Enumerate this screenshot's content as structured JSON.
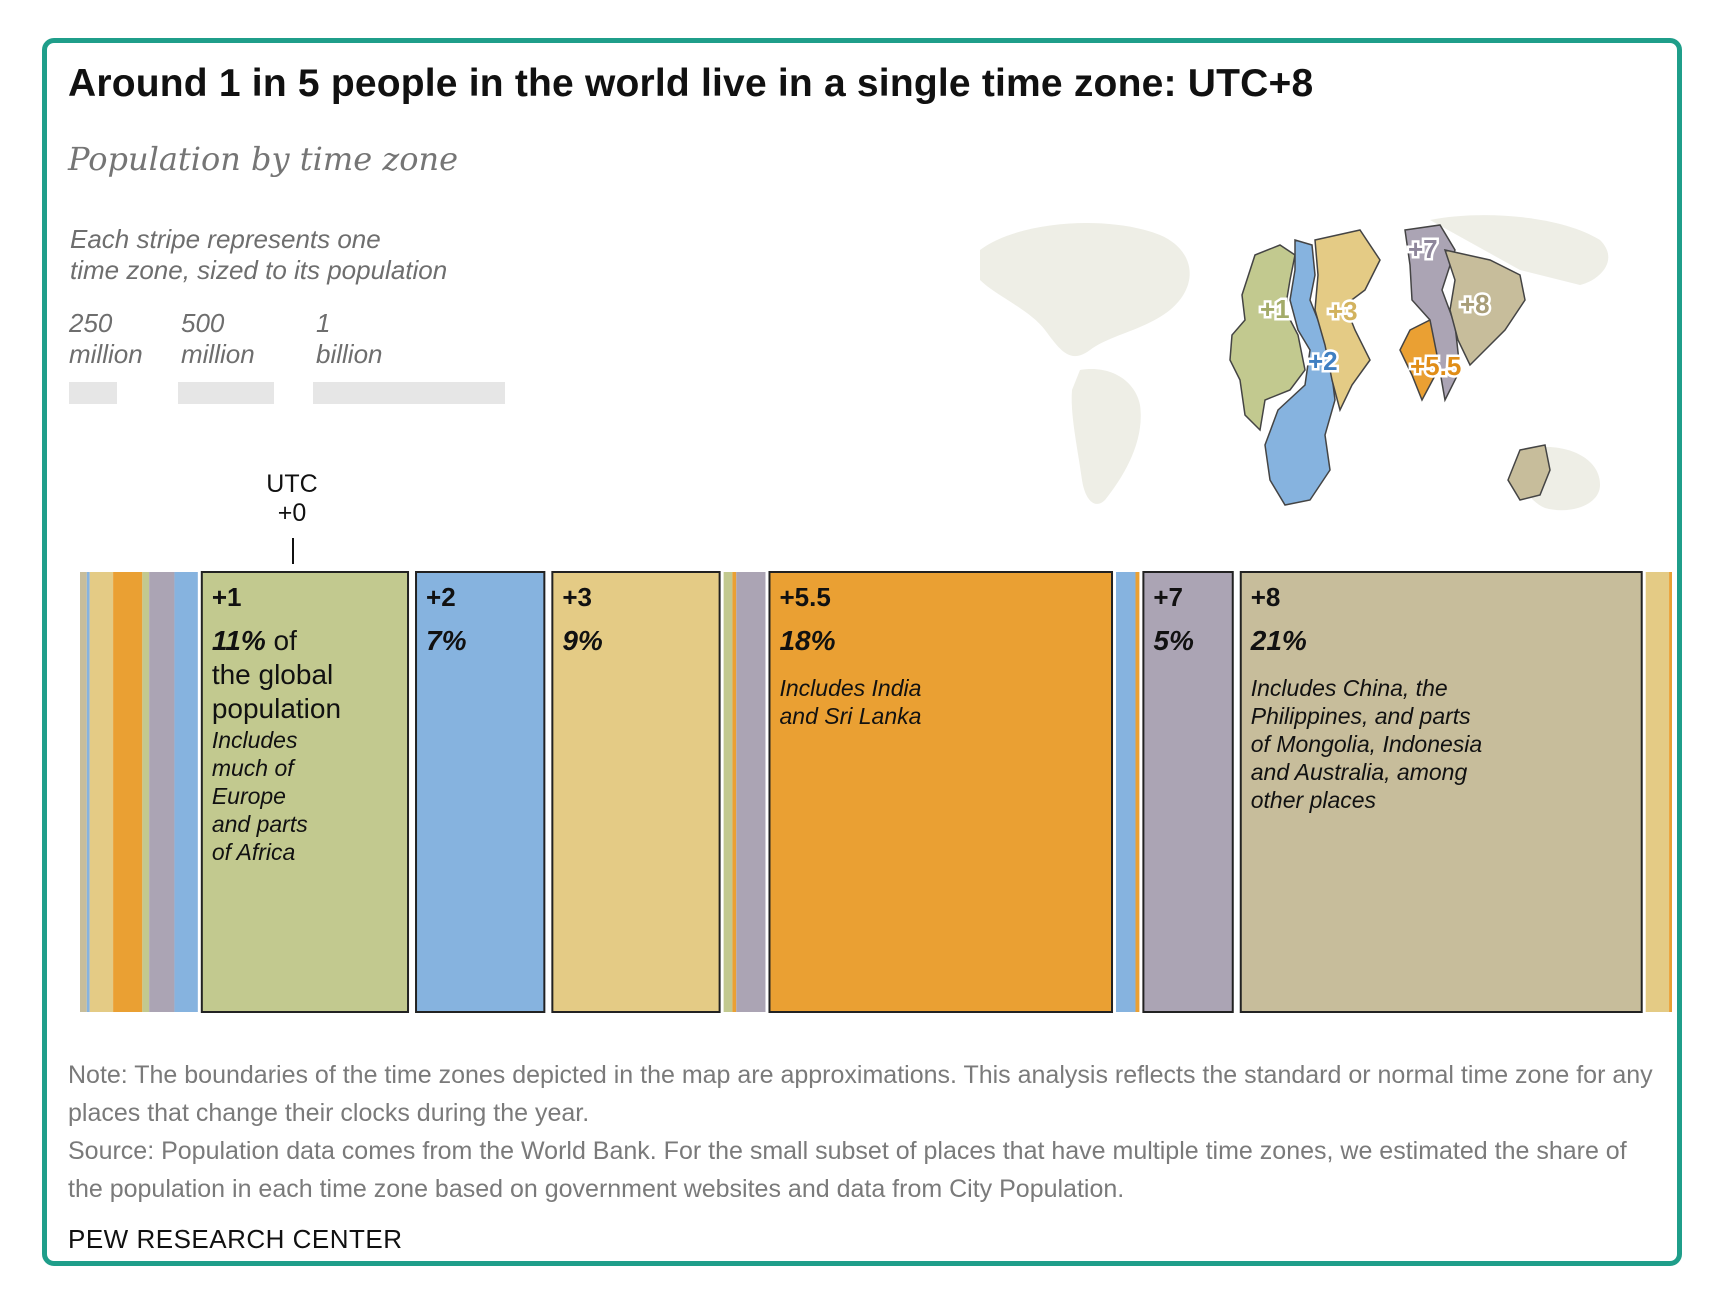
{
  "title": "Around 1 in 5 people in the world live in a single time zone: UTC+8",
  "subtitle": "Population by time zone",
  "legend": {
    "description_line1": "Each stripe represents one",
    "description_line2": "time zone, sized to its population",
    "items": [
      {
        "line1": "250",
        "line2": "million",
        "value_millions": 250
      },
      {
        "line1": "500",
        "line2": "million",
        "value_millions": 500
      },
      {
        "line1": "1",
        "line2": "billion",
        "value_millions": 1000
      }
    ]
  },
  "utc_marker": {
    "line1": "UTC",
    "line2": "+0"
  },
  "colors": {
    "green": "#c2c98f",
    "blue": "#86b3df",
    "yellow": "#e4cb85",
    "orange": "#eaa033",
    "purple": "#aba4b4",
    "tan": "#c7bd9b",
    "frame": "#1f9e8a"
  },
  "map_labels": [
    "+7",
    "+1",
    "+3",
    "+8",
    "+2",
    "+5.5"
  ],
  "chart_data": {
    "type": "bar",
    "layout": "proportional stripes",
    "unit": "share of world population",
    "stripes": [
      {
        "zone": "",
        "color": "tan",
        "share": 0.35
      },
      {
        "zone": "",
        "color": "blue",
        "share": 0.15
      },
      {
        "zone": "",
        "color": "yellow",
        "share": 1.2
      },
      {
        "zone": "",
        "color": "orange",
        "share": 1.5
      },
      {
        "zone": "",
        "color": "green",
        "share": 0.35
      },
      {
        "zone": "",
        "color": "purple",
        "share": 1.3
      },
      {
        "zone": "",
        "color": "blue",
        "share": 1.2
      },
      {
        "zone": "+1",
        "color": "green",
        "share": 11,
        "pct_label": "11%",
        "pct_suffix": " of",
        "extra_lines": [
          "the global",
          "population"
        ],
        "desc_lines": [
          "Includes",
          "much of",
          "Europe",
          "and parts",
          "of Africa"
        ]
      },
      {
        "zone": "+2",
        "color": "blue",
        "share": 7,
        "pct_label": "7%"
      },
      {
        "zone": "+3",
        "color": "yellow",
        "share": 9,
        "pct_label": "9%"
      },
      {
        "zone": "",
        "color": "green",
        "share": 0.45
      },
      {
        "zone": "",
        "color": "orange",
        "share": 0.2
      },
      {
        "zone": "",
        "color": "purple",
        "share": 1.5
      },
      {
        "zone": "+5.5",
        "color": "orange",
        "share": 18,
        "pct_label": "18%",
        "desc_lines": [
          "Includes India",
          "and Sri Lanka"
        ]
      },
      {
        "zone": "",
        "color": "blue",
        "share": 1.0
      },
      {
        "zone": "",
        "color": "orange",
        "share": 0.2
      },
      {
        "zone": "+7",
        "color": "purple",
        "share": 5,
        "pct_label": "5%"
      },
      {
        "zone": "+8",
        "color": "tan",
        "share": 21,
        "pct_label": "21%",
        "desc_lines": [
          "Includes China, the",
          "Philippines, and parts",
          "of Mongolia, Indonesia",
          "and Australia, among",
          "other places"
        ]
      },
      {
        "zone": "",
        "color": "yellow",
        "share": 1.2
      },
      {
        "zone": "",
        "color": "orange",
        "share": 0.15
      }
    ]
  },
  "note": "Note: The boundaries of the time zones depicted in the map are approximations. This analysis reflects the standard or normal time zone for any places that change their clocks during the year.",
  "source": "Source: Population data comes from the World Bank. For the small subset of places that have multiple time zones, we estimated the share of the population in each time zone based on government websites and data from City Population.",
  "brand": "PEW RESEARCH CENTER"
}
